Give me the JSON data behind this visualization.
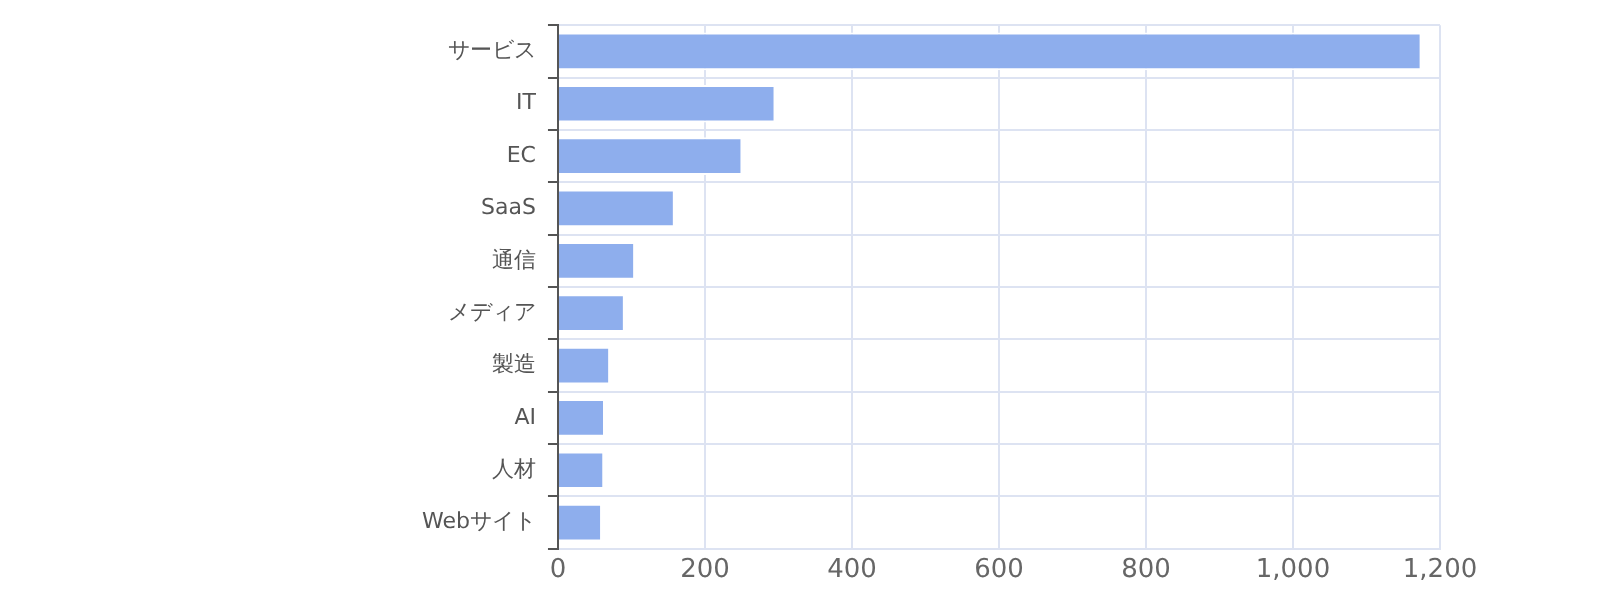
{
  "chart_data": {
    "type": "bar",
    "orientation": "horizontal",
    "categories": [
      "サービス",
      "IT",
      "EC",
      "SaaS",
      "通信",
      "メディア",
      "製造",
      "AI",
      "人材",
      "Webサイト"
    ],
    "values": [
      1175,
      296,
      251,
      159,
      105,
      91,
      71,
      64,
      63,
      60
    ],
    "color": "#8eaeed",
    "xlim": [
      0,
      1200
    ],
    "xticks": [
      0,
      200,
      400,
      600,
      800,
      {
        "value": 1000,
        "label": "1,000"
      },
      {
        "value": 1200,
        "label": "1,200"
      }
    ],
    "grid": true
  }
}
